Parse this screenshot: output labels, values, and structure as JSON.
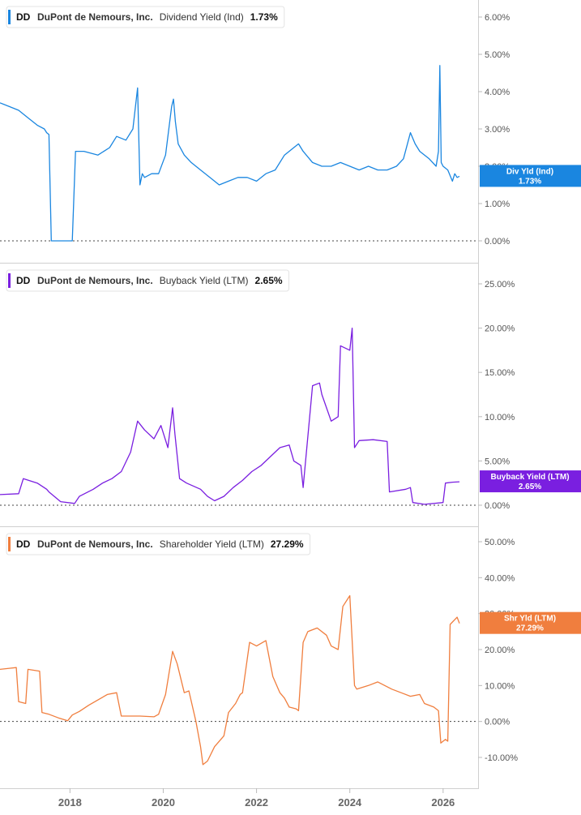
{
  "chart_data": [
    {
      "type": "line",
      "ticker": "DD",
      "company": "DuPont de Nemours, Inc.",
      "metric": "Dividend Yield (Ind)",
      "last_value_label": "1.73%",
      "badge_title": "Div Yld (Ind)",
      "badge_value": "1.73%",
      "color": "#1a86e0",
      "ylim": [
        -0.3,
        6.3
      ],
      "yticks": [
        0,
        1,
        2,
        3,
        4,
        5,
        6
      ],
      "ytick_labels": [
        "0.00%",
        "1.00%",
        "2.00%",
        "3.00%",
        "4.00%",
        "5.00%",
        "6.00%"
      ],
      "reference_line": 0,
      "x": [
        2016.5,
        2016.7,
        2016.9,
        2017.1,
        2017.3,
        2017.45,
        2017.5,
        2017.55,
        2017.6,
        2017.65,
        2018.05,
        2018.12,
        2018.3,
        2018.6,
        2018.85,
        2019.0,
        2019.2,
        2019.35,
        2019.45,
        2019.5,
        2019.55,
        2019.6,
        2019.75,
        2019.9,
        2020.05,
        2020.18,
        2020.22,
        2020.26,
        2020.32,
        2020.45,
        2020.6,
        2020.8,
        2021.0,
        2021.2,
        2021.4,
        2021.6,
        2021.8,
        2022.0,
        2022.2,
        2022.4,
        2022.6,
        2022.8,
        2022.9,
        2023.0,
        2023.2,
        2023.4,
        2023.6,
        2023.8,
        2024.0,
        2024.2,
        2024.4,
        2024.6,
        2024.8,
        2025.0,
        2025.15,
        2025.3,
        2025.4,
        2025.5,
        2025.7,
        2025.85,
        2025.9,
        2025.93,
        2025.96,
        2026.0,
        2026.1,
        2026.2,
        2026.25,
        2026.3,
        2026.35
      ],
      "y": [
        3.7,
        3.6,
        3.5,
        3.3,
        3.1,
        3.0,
        2.9,
        2.85,
        0.0,
        0.0,
        0.0,
        2.4,
        2.4,
        2.3,
        2.5,
        2.8,
        2.7,
        3.0,
        4.1,
        1.5,
        1.8,
        1.7,
        1.8,
        1.8,
        2.3,
        3.6,
        3.8,
        3.2,
        2.6,
        2.3,
        2.1,
        1.9,
        1.7,
        1.5,
        1.6,
        1.7,
        1.7,
        1.6,
        1.8,
        1.9,
        2.3,
        2.5,
        2.6,
        2.4,
        2.1,
        2.0,
        2.0,
        2.1,
        2.0,
        1.9,
        2.0,
        1.9,
        1.9,
        2.0,
        2.2,
        2.9,
        2.6,
        2.4,
        2.2,
        2.0,
        2.4,
        4.7,
        2.1,
        2.0,
        1.9,
        1.6,
        1.8,
        1.7,
        1.73
      ]
    },
    {
      "type": "line",
      "ticker": "DD",
      "company": "DuPont de Nemours, Inc.",
      "metric": "Buyback Yield (LTM)",
      "last_value_label": "2.65%",
      "badge_title": "Buyback Yield (LTM)",
      "badge_value": "2.65%",
      "color": "#7a1fe0",
      "ylim": [
        -1.0,
        26.0
      ],
      "yticks": [
        0,
        5,
        10,
        15,
        20,
        25
      ],
      "ytick_labels": [
        "0.00%",
        "5.00%",
        "10.00%",
        "15.00%",
        "20.00%",
        "25.00%"
      ],
      "reference_line": 0,
      "x": [
        2016.5,
        2016.9,
        2017.0,
        2017.3,
        2017.5,
        2017.55,
        2017.8,
        2018.1,
        2018.2,
        2018.5,
        2018.7,
        2018.9,
        2019.1,
        2019.3,
        2019.45,
        2019.6,
        2019.8,
        2019.95,
        2020.1,
        2020.2,
        2020.25,
        2020.35,
        2020.5,
        2020.8,
        2020.95,
        2021.1,
        2021.3,
        2021.5,
        2021.7,
        2021.9,
        2022.1,
        2022.3,
        2022.5,
        2022.7,
        2022.8,
        2022.95,
        2023.0,
        2023.2,
        2023.35,
        2023.4,
        2023.6,
        2023.75,
        2023.8,
        2024.0,
        2024.05,
        2024.1,
        2024.2,
        2024.5,
        2024.8,
        2024.85,
        2025.2,
        2025.3,
        2025.35,
        2025.6,
        2026.0,
        2026.05,
        2026.2,
        2026.35
      ],
      "y": [
        1.2,
        1.3,
        3.0,
        2.5,
        1.8,
        1.5,
        0.4,
        0.2,
        1.0,
        1.8,
        2.5,
        3.0,
        3.8,
        6.0,
        9.5,
        8.5,
        7.5,
        9.0,
        6.5,
        11.0,
        8.0,
        3.0,
        2.5,
        1.8,
        1.0,
        0.5,
        1.0,
        2.0,
        2.8,
        3.8,
        4.5,
        5.5,
        6.5,
        6.8,
        5.0,
        4.5,
        2.0,
        13.5,
        13.8,
        12.5,
        9.5,
        10.0,
        18.0,
        17.5,
        20.0,
        6.5,
        7.3,
        7.4,
        7.2,
        1.5,
        1.8,
        2.0,
        0.3,
        0.1,
        0.3,
        2.5,
        2.6,
        2.65
      ]
    },
    {
      "type": "line",
      "ticker": "DD",
      "company": "DuPont de Nemours, Inc.",
      "metric": "Shareholder Yield (LTM)",
      "last_value_label": "27.29%",
      "badge_title": "Shr Yld (LTM)",
      "badge_value": "27.29%",
      "color": "#f07e3e",
      "ylim": [
        -13.0,
        53.0
      ],
      "yticks": [
        -10,
        0,
        10,
        20,
        30,
        40,
        50
      ],
      "ytick_labels": [
        "-10.00%",
        "0.00%",
        "10.00%",
        "20.00%",
        "30.00%",
        "40.00%",
        "50.00%"
      ],
      "reference_line": 0,
      "x": [
        2016.5,
        2016.7,
        2016.85,
        2016.9,
        2017.05,
        2017.1,
        2017.35,
        2017.4,
        2017.55,
        2017.75,
        2017.95,
        2018.05,
        2018.2,
        2018.4,
        2018.6,
        2018.8,
        2019.0,
        2019.1,
        2019.5,
        2019.8,
        2019.9,
        2020.05,
        2020.2,
        2020.3,
        2020.45,
        2020.55,
        2020.7,
        2020.8,
        2020.85,
        2020.95,
        2021.1,
        2021.3,
        2021.4,
        2021.55,
        2021.65,
        2021.7,
        2021.85,
        2022.0,
        2022.2,
        2022.35,
        2022.5,
        2022.6,
        2022.7,
        2022.85,
        2022.9,
        2023.0,
        2023.1,
        2023.3,
        2023.5,
        2023.6,
        2023.75,
        2023.85,
        2024.0,
        2024.1,
        2024.15,
        2024.4,
        2024.6,
        2024.9,
        2025.1,
        2025.3,
        2025.5,
        2025.6,
        2025.8,
        2025.9,
        2025.95,
        2026.05,
        2026.1,
        2026.15,
        2026.3,
        2026.35
      ],
      "y": [
        14.5,
        14.8,
        15.0,
        5.5,
        5.0,
        14.5,
        14.0,
        2.5,
        2.0,
        1.0,
        0.2,
        1.8,
        2.8,
        4.5,
        6.0,
        7.5,
        8.0,
        1.5,
        1.5,
        1.3,
        2.0,
        7.5,
        19.5,
        16.0,
        8.0,
        8.5,
        0.0,
        -7.0,
        -12.0,
        -11.0,
        -7.0,
        -4.0,
        2.5,
        5.0,
        7.5,
        8.0,
        22.0,
        21.0,
        22.5,
        12.5,
        8.0,
        6.5,
        4.0,
        3.5,
        3.0,
        22.0,
        25.0,
        26.0,
        24.0,
        21.0,
        20.0,
        32.0,
        35.0,
        10.0,
        9.0,
        10.0,
        11.0,
        9.0,
        8.0,
        7.0,
        7.5,
        5.0,
        4.0,
        3.0,
        -6.0,
        -5.0,
        -5.5,
        27.0,
        29.0,
        27.29
      ]
    }
  ],
  "x_axis": {
    "ticks": [
      2018,
      2020,
      2022,
      2024,
      2026
    ],
    "tick_labels": [
      "2018",
      "2020",
      "2022",
      "2024",
      "2026"
    ],
    "range": [
      2016.5,
      2026.75
    ]
  }
}
